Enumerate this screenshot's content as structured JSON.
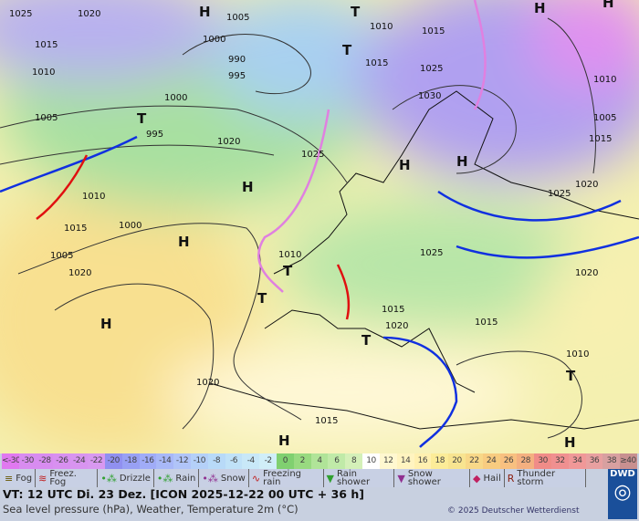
{
  "map": {
    "pressure_labels": [
      "1025",
      "1020",
      "1015",
      "1010",
      "1005",
      "1000",
      "1000",
      "990",
      "995",
      "1005",
      "1010",
      "1015",
      "1025",
      "1030",
      "1020",
      "1010",
      "1015",
      "1005",
      "1000",
      "995",
      "1020",
      "1025",
      "1010",
      "1015",
      "1020",
      "1025",
      "1010",
      "1005",
      "1015",
      "1020",
      "1020",
      "1015",
      "1010",
      "1025",
      "1020",
      "1015",
      "1015"
    ],
    "pressure_centres": [
      "H",
      "H",
      "T",
      "H",
      "H",
      "H",
      "H",
      "H",
      "T",
      "H",
      "T",
      "T",
      "H",
      "T",
      "T",
      "H",
      "T"
    ],
    "colors": {
      "cold": "#1030e0",
      "warm": "#e01010",
      "occluded": "#e080e0",
      "isobar": "#222222"
    }
  },
  "scale": {
    "cells": [
      "<-30",
      "-30",
      "-28",
      "-26",
      "-24",
      "-22",
      "-20",
      "-18",
      "-16",
      "-14",
      "-12",
      "-10",
      "-8",
      "-6",
      "-4",
      "-2",
      "0",
      "2",
      "4",
      "6",
      "8",
      "10",
      "12",
      "14",
      "16",
      "18",
      "20",
      "22",
      "24",
      "26",
      "28",
      "30",
      "32",
      "34",
      "36",
      "38",
      "≥40 °C"
    ],
    "colors": [
      "#e078f0",
      "#d88cf0",
      "#d88cf0",
      "#d890f0",
      "#d894f0",
      "#d898f0",
      "#9090f0",
      "#98a0f4",
      "#a0acf8",
      "#a8b8f8",
      "#b0c4f8",
      "#b4d0f8",
      "#b8daf8",
      "#c0e2f8",
      "#c8e8f8",
      "#d0eef8",
      "#80d070",
      "#98da80",
      "#b0e498",
      "#c0eaa8",
      "#d4f0b8",
      "#ffffff",
      "#fff8d0",
      "#fff4c0",
      "#fff0b0",
      "#fcec98",
      "#f8e490",
      "#f8d888",
      "#f8cc80",
      "#f8c080",
      "#f4b080",
      "#f08c88",
      "#f09090",
      "#f09898",
      "#e8a0a0",
      "#d8a0a0",
      "#c89090"
    ]
  },
  "legend": [
    {
      "icon": "fog-icon",
      "sym": "≡",
      "color": "#665500",
      "label": "Fog"
    },
    {
      "icon": "freezing-fog-icon",
      "sym": "≋",
      "color": "#c02020",
      "label": "Freez. Fog"
    },
    {
      "icon": "drizzle-icon",
      "sym": "•⁂",
      "color": "#30a030",
      "label": "Drizzle"
    },
    {
      "icon": "rain-icon",
      "sym": "•⁂",
      "color": "#30a030",
      "label": "Rain"
    },
    {
      "icon": "snow-icon",
      "sym": "•⁂",
      "color": "#903090",
      "label": "Snow"
    },
    {
      "icon": "freezing-rain-icon",
      "sym": "∿",
      "color": "#c02020",
      "label": "Freezing rain"
    },
    {
      "icon": "rain-shower-icon",
      "sym": "▼",
      "color": "#30a030",
      "label": "Rain shower"
    },
    {
      "icon": "snow-shower-icon",
      "sym": "▼",
      "color": "#903090",
      "label": "Snow shower"
    },
    {
      "icon": "hail-icon",
      "sym": "◆",
      "color": "#c02060",
      "label": "Hail"
    },
    {
      "icon": "thunderstorm-icon",
      "sym": "R",
      "color": "#8b2010",
      "label": "Thunder storm"
    }
  ],
  "footer": {
    "vt": "VT: 12 UTC Di.  23 Dez. [ICON 2025-12-22  00 UTC + 36 h]",
    "subtitle": "Sea level pressure (hPa), Weather, Temperature 2m (°C)",
    "copyright": "© 2025 Deutscher Wetterdienst",
    "logo": "DWD"
  }
}
